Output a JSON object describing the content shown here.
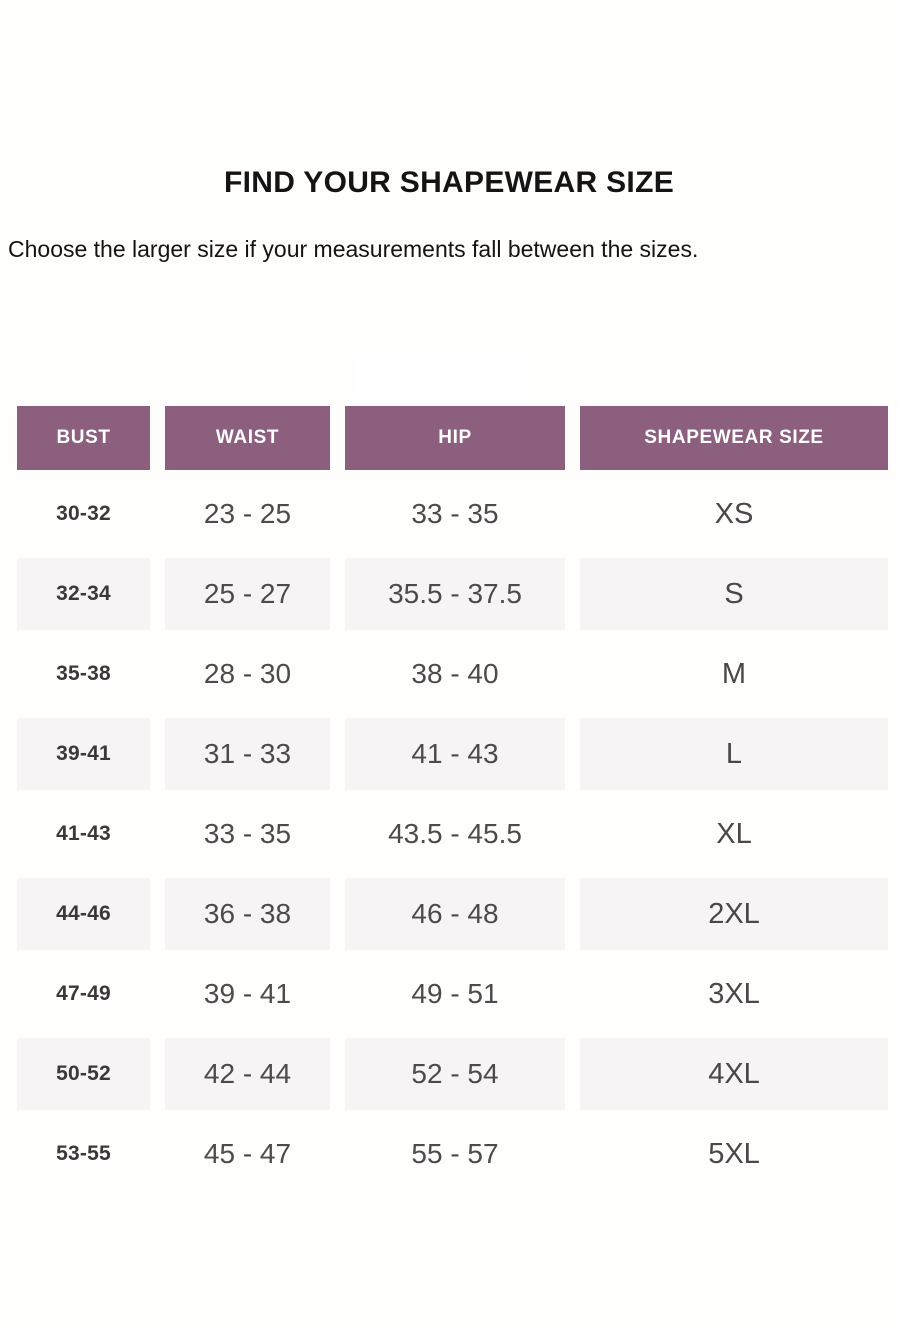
{
  "page": {
    "title": "FIND YOUR SHAPEWEAR SIZE",
    "subtitle": "Choose the larger size if your measurements fall between the sizes."
  },
  "table": {
    "headers": [
      "BUST",
      "WAIST",
      "HIP",
      "SHAPEWEAR SIZE"
    ],
    "rows": [
      {
        "bust": "30-32",
        "waist": "23 - 25",
        "hip": "33 - 35",
        "size": "XS"
      },
      {
        "bust": "32-34",
        "waist": "25 - 27",
        "hip": "35.5 - 37.5",
        "size": "S"
      },
      {
        "bust": "35-38",
        "waist": "28 - 30",
        "hip": "38 - 40",
        "size": "M"
      },
      {
        "bust": "39-41",
        "waist": "31 - 33",
        "hip": "41 - 43",
        "size": "L"
      },
      {
        "bust": "41-43",
        "waist": "33 - 35",
        "hip": "43.5 - 45.5",
        "size": "XL"
      },
      {
        "bust": "44-46",
        "waist": "36 - 38",
        "hip": "46 - 48",
        "size": "2XL"
      },
      {
        "bust": "47-49",
        "waist": "39 - 41",
        "hip": "49 - 51",
        "size": "3XL"
      },
      {
        "bust": "50-52",
        "waist": "42 - 44",
        "hip": "52 - 54",
        "size": "4XL"
      },
      {
        "bust": "53-55",
        "waist": "45 - 47",
        "hip": "55 - 57",
        "size": "5XL"
      }
    ],
    "colors": {
      "header_bg": "#8b5f7d",
      "header_text": "#ffffff",
      "row_alt_bg": "#f6f4f5",
      "range_text": "#4b4b4d",
      "bust_text": "#39393b",
      "title_text": "#141414"
    }
  }
}
